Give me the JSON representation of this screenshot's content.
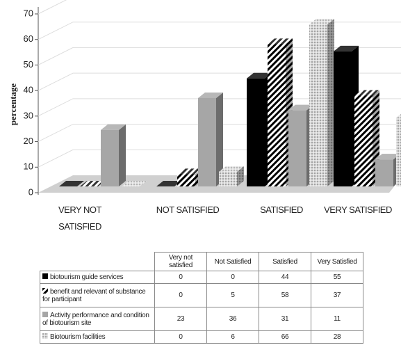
{
  "chart_data": {
    "type": "bar3d",
    "ylabel": "percentage",
    "categories": [
      "VERY NOT SATISFIED",
      "NOT SATISFIED",
      "SATISFIED",
      "VERY SATISFIED"
    ],
    "table_header": [
      "Very not satisfied",
      "Not Satisfied",
      "Satisfied",
      "Very Satisfied"
    ],
    "series": [
      {
        "name": "biotourism guide services",
        "color": "#000000",
        "pattern": "solid",
        "values": [
          0,
          0,
          44,
          55
        ]
      },
      {
        "name": "benefit and relevant of substance for participant",
        "color": "#000000",
        "pattern": "stripes",
        "values": [
          0,
          5,
          58,
          37
        ]
      },
      {
        "name": "Activity performance and condition of biotourism site",
        "color": "#a6a6a6",
        "pattern": "solid",
        "values": [
          23,
          36,
          31,
          11
        ]
      },
      {
        "name": "Biotourism facilities",
        "color": "#bfbfbf",
        "pattern": "dots",
        "values": [
          0,
          6,
          66,
          28
        ]
      }
    ],
    "ylim": [
      0,
      70
    ],
    "yticks": [
      0,
      10,
      20,
      30,
      40,
      50,
      60,
      70
    ],
    "grid": true
  }
}
